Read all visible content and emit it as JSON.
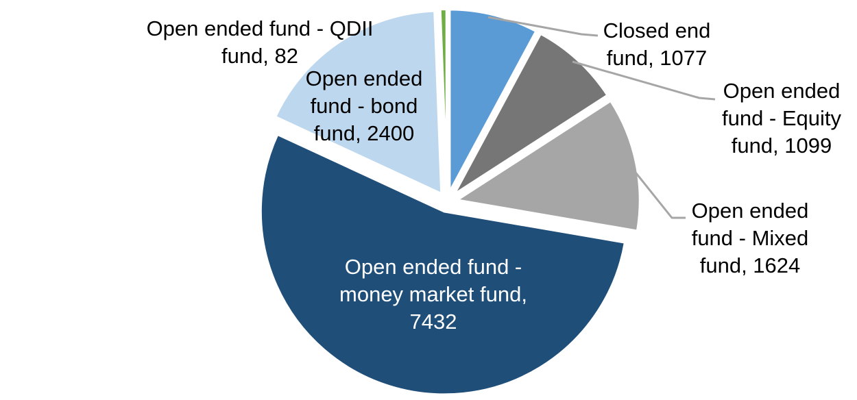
{
  "chart_data": {
    "type": "pie",
    "title": "",
    "legend": "none",
    "start_angle_deg": 0,
    "direction": "clockwise",
    "total": 13714,
    "slices": [
      {
        "id": "closed-end-fund",
        "label": "Closed end fund",
        "value": 1077,
        "color": "#5b9bd5"
      },
      {
        "id": "equity-fund",
        "label": "Open ended fund - Equity fund",
        "value": 1099,
        "color": "#767676"
      },
      {
        "id": "mixed-fund",
        "label": "Open ended fund - Mixed fund",
        "value": 1624,
        "color": "#a6a6a6"
      },
      {
        "id": "money-market-fund",
        "label": "Open ended fund - money market fund",
        "value": 7432,
        "color": "#1f4e79"
      },
      {
        "id": "bond-fund",
        "label": "Open ended fund - bond fund",
        "value": 2400,
        "color": "#bdd7ee"
      },
      {
        "id": "qdii-fund",
        "label": "Open ended fund - QDII fund",
        "value": 82,
        "color": "#70ad47"
      }
    ],
    "labels": {
      "qdii": {
        "lines": [
          "Open ended fund - QDII",
          "fund, 82"
        ]
      },
      "bond": {
        "lines": [
          "Open ended",
          "fund - bond",
          "fund, 2400"
        ]
      },
      "closed_end": {
        "lines": [
          "Closed end",
          "fund, 1077"
        ]
      },
      "equity": {
        "lines": [
          "Open ended",
          "fund - Equity",
          "fund, 1099"
        ]
      },
      "mixed": {
        "lines": [
          "Open ended",
          "fund - Mixed",
          "fund, 1624"
        ]
      },
      "money_market": {
        "lines": [
          "Open ended fund -",
          "money market fund,",
          "7432"
        ]
      }
    }
  },
  "colors": {
    "background": "#ffffff",
    "slice_border": "#ffffff",
    "leader_line": "#a6a6a6",
    "label_text": "#000000",
    "inside_label_text": "#ffffff"
  }
}
